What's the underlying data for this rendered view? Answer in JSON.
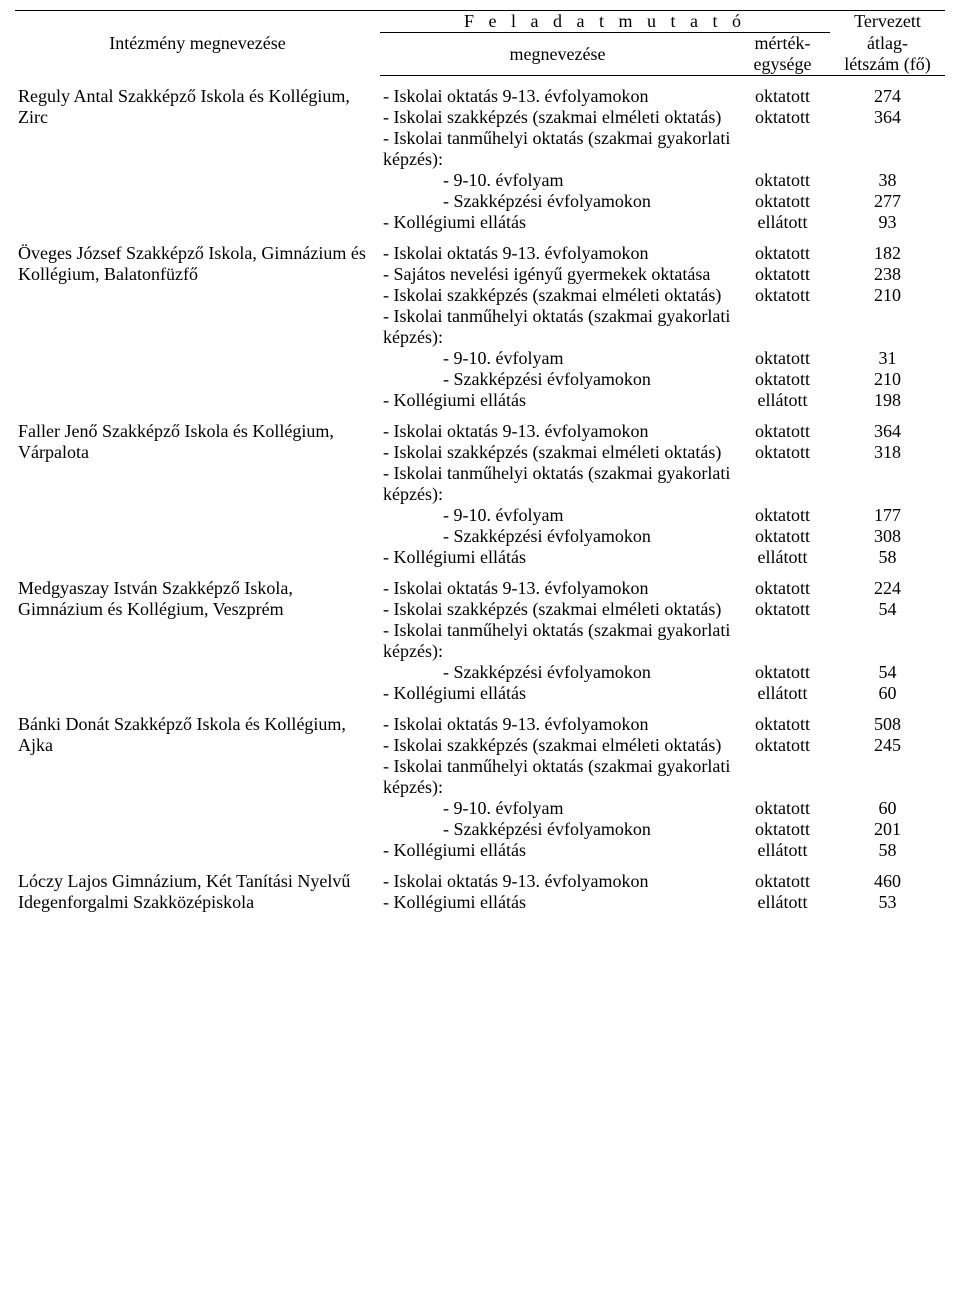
{
  "header": {
    "col_inst": "Intézmény megnevezése",
    "col_task_group": "F e l a d a t m u t a t ó",
    "col_task": "megnevezése",
    "col_unit_l1": "mérték-",
    "col_unit_l2": "egysége",
    "col_count_l1": "Tervezett",
    "col_count_l2": "átlag-",
    "col_count_l3": "létszám (fő)"
  },
  "institutions": [
    {
      "name": "Reguly Antal Szakképző Iskola és Kollégium, Zirc",
      "tasks": [
        {
          "label": "- Iskolai oktatás 9-13. évfolyamokon",
          "unit": "oktatott",
          "count": "274"
        },
        {
          "label": "- Iskolai szakképzés (szakmai elméleti oktatás)",
          "unit": "oktatott",
          "count": "364"
        },
        {
          "label": "- Iskolai tanműhelyi oktatás (szakmai gyakorlati képzés):",
          "unit": "",
          "count": ""
        },
        {
          "label": "- 9-10. évfolyam",
          "indent": true,
          "unit": "oktatott",
          "count": "38"
        },
        {
          "label": "- Szakképzési évfolyamokon",
          "indent": true,
          "unit": "oktatott",
          "count": "277"
        },
        {
          "label": "- Kollégiumi ellátás",
          "unit": "ellátott",
          "count": "93"
        }
      ]
    },
    {
      "name": "Öveges József Szakképző Iskola, Gimnázium és Kollégium, Balatonfüzfő",
      "tasks": [
        {
          "label": "- Iskolai oktatás 9-13. évfolyamokon",
          "unit": "oktatott",
          "count": "182"
        },
        {
          "label": "- Sajátos nevelési igényű gyermekek oktatása",
          "unit": "oktatott",
          "count": "238"
        },
        {
          "label": "- Iskolai szakképzés (szakmai elméleti oktatás)",
          "unit": "oktatott",
          "count": "210"
        },
        {
          "label": "- Iskolai tanműhelyi oktatás (szakmai gyakorlati képzés):",
          "unit": "",
          "count": ""
        },
        {
          "label": "- 9-10. évfolyam",
          "indent": true,
          "unit": "oktatott",
          "count": "31"
        },
        {
          "label": "- Szakképzési évfolyamokon",
          "indent": true,
          "unit": "oktatott",
          "count": "210"
        },
        {
          "label": "- Kollégiumi ellátás",
          "unit": "ellátott",
          "count": "198"
        }
      ]
    },
    {
      "name": "Faller Jenő Szakképző Iskola és Kollégium, Várpalota",
      "tasks": [
        {
          "label": "- Iskolai oktatás 9-13. évfolyamokon",
          "unit": "oktatott",
          "count": "364"
        },
        {
          "label": "- Iskolai szakképzés (szakmai elméleti oktatás)",
          "unit": "oktatott",
          "count": "318"
        },
        {
          "label": "- Iskolai tanműhelyi oktatás (szakmai gyakorlati képzés):",
          "unit": "",
          "count": ""
        },
        {
          "label": "- 9-10. évfolyam",
          "indent": true,
          "unit": "oktatott",
          "count": "177"
        },
        {
          "label": "- Szakképzési évfolyamokon",
          "indent": true,
          "unit": "oktatott",
          "count": "308"
        },
        {
          "label": "- Kollégiumi ellátás",
          "unit": "ellátott",
          "count": "58"
        }
      ]
    },
    {
      "name": "Medgyaszay István Szakképző Iskola, Gimnázium és Kollégium, Veszprém",
      "tasks": [
        {
          "label": "- Iskolai oktatás 9-13. évfolyamokon",
          "unit": "oktatott",
          "count": "224"
        },
        {
          "label": "- Iskolai szakképzés (szakmai elméleti oktatás)",
          "unit": "oktatott",
          "count": "54"
        },
        {
          "label": "- Iskolai tanműhelyi oktatás (szakmai gyakorlati képzés):",
          "unit": "",
          "count": ""
        },
        {
          "label": "- Szakképzési évfolyamokon",
          "indent": true,
          "unit": "oktatott",
          "count": "54"
        },
        {
          "label": "- Kollégiumi ellátás",
          "unit": "ellátott",
          "count": "60"
        }
      ]
    },
    {
      "name": "Bánki Donát Szakképző Iskola és Kollégium, Ajka",
      "tasks": [
        {
          "label": "- Iskolai oktatás 9-13. évfolyamokon",
          "unit": "oktatott",
          "count": "508"
        },
        {
          "label": "- Iskolai szakképzés (szakmai elméleti oktatás)",
          "unit": "oktatott",
          "count": "245"
        },
        {
          "label": "- Iskolai tanműhelyi oktatás (szakmai gyakorlati képzés):",
          "unit": "",
          "count": ""
        },
        {
          "label": "- 9-10. évfolyam",
          "indent": true,
          "unit": "oktatott",
          "count": "60"
        },
        {
          "label": "- Szakképzési évfolyamokon",
          "indent": true,
          "unit": "oktatott",
          "count": "201"
        },
        {
          "label": "- Kollégiumi ellátás",
          "unit": "ellátott",
          "count": "58"
        }
      ]
    },
    {
      "name": "Lóczy Lajos Gimnázium, Két Tanítási Nyelvű Idegenforgalmi Szakközépiskola",
      "tasks": [
        {
          "label": "- Iskolai oktatás 9-13. évfolyamokon",
          "unit": "oktatott",
          "count": "460"
        },
        {
          "label": "- Kollégiumi ellátás",
          "unit": "ellátott",
          "count": "53"
        }
      ]
    }
  ]
}
